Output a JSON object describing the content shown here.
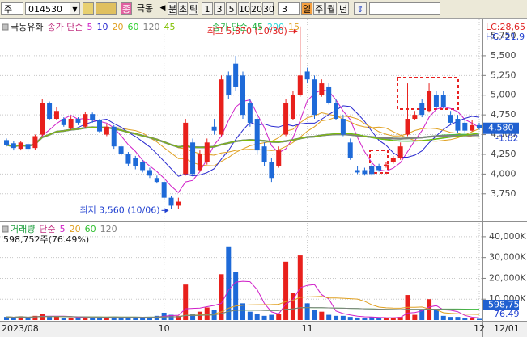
{
  "toolbar": {
    "market": "주",
    "code": "014530",
    "badge": "종",
    "name": "극동",
    "units": [
      "분",
      "초",
      "틱"
    ],
    "intervals": [
      "1",
      "3",
      "5",
      "10",
      "20",
      "30"
    ],
    "count": "3",
    "periods": [
      "일",
      "주",
      "월",
      "년"
    ]
  },
  "chart_data": {
    "type": "candlestick",
    "title": "극동유화",
    "ma_label": "종가 단순",
    "ma": [
      {
        "period": 5,
        "color": "#d020c8"
      },
      {
        "period": 10,
        "color": "#2a2ad0"
      },
      {
        "period": 20,
        "color": "#e0a020"
      },
      {
        "period": 60,
        "color": "#30d030"
      },
      {
        "period": 120,
        "color": "#808080"
      },
      {
        "period": 45,
        "color": "#80c000"
      }
    ],
    "ma2_label": "종가 단순",
    "ma2": [
      {
        "period": 45,
        "color": "#20b040"
      },
      {
        "period": 200,
        "color": "#30d8d8"
      },
      {
        "period": 15,
        "color": "#e0a020"
      }
    ],
    "lc": "LC:28,65",
    "hc": "HC:-21,9",
    "categories": [
      "2023/08",
      null,
      null,
      null,
      null,
      null,
      null,
      null,
      null,
      null,
      null,
      null,
      null,
      null,
      null,
      null,
      null,
      null,
      null,
      null,
      null,
      null,
      "10",
      null,
      null,
      null,
      null,
      null,
      null,
      null,
      null,
      null,
      null,
      null,
      null,
      null,
      null,
      null,
      null,
      null,
      null,
      null,
      "11",
      null,
      null,
      null,
      null,
      null,
      null,
      null,
      null,
      null,
      null,
      null,
      null,
      null,
      null,
      null,
      null,
      null,
      null,
      null,
      null,
      null,
      null,
      null,
      "12"
    ],
    "open": [
      4430,
      4390,
      4320,
      4380,
      4330,
      4500,
      4900,
      4700,
      4700,
      4580,
      4700,
      4600,
      4760,
      4680,
      4500,
      4600,
      4350,
      4250,
      4200,
      4150,
      4050,
      3950,
      3900,
      3700,
      3600,
      4000,
      4400,
      4050,
      4150,
      4600,
      4500,
      5250,
      5400,
      5250,
      4900,
      4700,
      4350,
      4150,
      4100,
      4500,
      4700,
      5000,
      5300,
      5200,
      5000,
      5100,
      4900,
      4700,
      4400,
      4050,
      4050,
      4100,
      4100,
      4100,
      4150,
      4200,
      4500,
      4700,
      4900,
      4800,
      5000,
      5000,
      4750,
      4700,
      4650,
      4550,
      4620
    ],
    "high": [
      4450,
      4420,
      4420,
      4400,
      4500,
      4950,
      4920,
      4850,
      4720,
      4730,
      4720,
      4790,
      4780,
      4700,
      4640,
      4620,
      4380,
      4280,
      4230,
      4180,
      4080,
      3980,
      3920,
      3720,
      3700,
      4700,
      4450,
      4300,
      4450,
      4700,
      5250,
      5300,
      5500,
      5300,
      4950,
      4750,
      4400,
      4200,
      4350,
      4950,
      5050,
      5870,
      5350,
      5250,
      5200,
      5150,
      4950,
      4750,
      4450,
      4100,
      4080,
      4130,
      4130,
      4150,
      4230,
      4400,
      5150,
      4800,
      4950,
      5150,
      5050,
      5050,
      4800,
      4750,
      4700,
      4680,
      4650
    ],
    "low": [
      4350,
      4300,
      4300,
      4280,
      4310,
      4480,
      4680,
      4680,
      4600,
      4560,
      4620,
      4580,
      4650,
      4520,
      4480,
      4320,
      4230,
      4100,
      4060,
      4020,
      3950,
      3880,
      3680,
      3560,
      3560,
      3980,
      3970,
      4030,
      4120,
      4500,
      4480,
      4950,
      5050,
      4700,
      4600,
      4250,
      4100,
      3900,
      4080,
      4480,
      4680,
      4980,
      5150,
      4700,
      4980,
      4880,
      4680,
      4480,
      4180,
      4000,
      3980,
      3980,
      4030,
      4080,
      4130,
      4180,
      4480,
      4680,
      4720,
      4780,
      4830,
      4830,
      4630,
      4520,
      4520,
      4540,
      4560
    ],
    "close": [
      4370,
      4330,
      4400,
      4320,
      4480,
      4900,
      4700,
      4800,
      4620,
      4700,
      4650,
      4760,
      4680,
      4540,
      4600,
      4350,
      4250,
      4130,
      4100,
      4050,
      3980,
      3900,
      3700,
      3600,
      3650,
      4650,
      4000,
      4250,
      4400,
      4550,
      5200,
      5000,
      5100,
      4750,
      4650,
      4300,
      4150,
      3950,
      4300,
      4900,
      5000,
      5250,
      5200,
      4750,
      5150,
      4900,
      4700,
      4500,
      4200,
      4020,
      4000,
      4000,
      4050,
      4120,
      4200,
      4350,
      4700,
      4750,
      4750,
      5050,
      4850,
      4850,
      4650,
      4550,
      4550,
      4620,
      4580
    ],
    "up_color": "#e8201c",
    "down_color": "#1e6ad8",
    "ylim": [
      3420,
      5960
    ],
    "yticks": [
      {
        "value": 3750,
        "label": "3,750"
      },
      {
        "value": 4000,
        "label": "4,000"
      },
      {
        "value": 4250,
        "label": "4,250"
      },
      {
        "value": 4500,
        "label": "4,500"
      },
      {
        "value": 4750,
        "label": "4,750"
      },
      {
        "value": 5000,
        "label": "5,000"
      },
      {
        "value": 5250,
        "label": "5,250"
      },
      {
        "value": 5500,
        "label": "5,500"
      },
      {
        "value": 5750,
        "label": "5,750"
      }
    ],
    "grid": true,
    "high_note": "최고 5,870 (10/30)",
    "low_note": "최저 3,560 (10/06)",
    "last_price": {
      "value": 4580,
      "label": "4,580"
    },
    "change": "-1.62",
    "last_date": "12/01",
    "volume_panel": {
      "title": "거래량",
      "ma_label": "단순",
      "ma": [
        {
          "period": 5,
          "color": "#d020c8"
        },
        {
          "period": 20,
          "color": "#e0a020"
        },
        {
          "period": 60,
          "color": "#30c030"
        },
        {
          "period": 120,
          "color": "#808080"
        }
      ],
      "info": "598,752주(76.49%)",
      "values": [
        1500,
        1200,
        1800,
        1000,
        2000,
        3000,
        1500,
        1800,
        1000,
        1200,
        900,
        1100,
        1000,
        1300,
        900,
        1500,
        1200,
        1400,
        1000,
        1200,
        1500,
        2000,
        3500,
        2500,
        2000,
        17000,
        3000,
        4000,
        6000,
        5000,
        22000,
        35000,
        23000,
        8000,
        4000,
        3000,
        2000,
        2500,
        3000,
        28000,
        13000,
        31000,
        8000,
        5000,
        4000,
        2500,
        2000,
        2000,
        1500,
        1200,
        1000,
        1500,
        1200,
        1000,
        1000,
        1500,
        12000,
        2500,
        5000,
        10000,
        5000,
        2000,
        1500,
        1500,
        1000,
        800,
        598.752
      ],
      "ylim": [
        0,
        45000
      ],
      "yticks": [
        {
          "value": 10000,
          "label": "10,000K"
        },
        {
          "value": 20000,
          "label": "20,000K"
        },
        {
          "value": 30000,
          "label": "30,000K"
        },
        {
          "value": 40000,
          "label": "40,000K"
        }
      ],
      "tag_volume": "598,75",
      "tag_ratio": "76.49"
    }
  }
}
